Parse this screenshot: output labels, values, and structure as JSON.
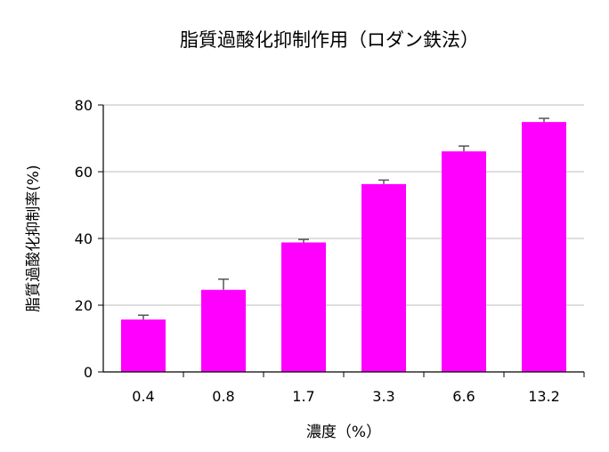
{
  "chart_data": {
    "type": "bar",
    "title": "脂質過酸化抑制作用（ロダン鉄法）",
    "xlabel": "濃度（%）",
    "ylabel": "脂質過酸化抑制率(%)",
    "categories": [
      "0.4",
      "0.8",
      "1.7",
      "3.3",
      "6.6",
      "13.2"
    ],
    "values": [
      15.7,
      24.6,
      38.8,
      56.3,
      66.1,
      74.9
    ],
    "errors": [
      1.3,
      3.2,
      0.9,
      1.2,
      1.6,
      1.1
    ],
    "ylim": [
      0,
      80
    ],
    "yticks": [
      0,
      20,
      40,
      60,
      80
    ],
    "grid": true,
    "colors": {
      "bar": "#ff00ff",
      "grid": "#bdbdbd",
      "axis": "#000000",
      "error_bar": "#555555"
    }
  }
}
